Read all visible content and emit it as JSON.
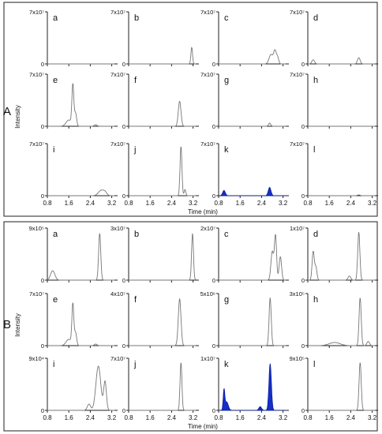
{
  "figure": {
    "panels": [
      {
        "id": "A",
        "label": "A",
        "ylabel": "Intensity",
        "xlabel": "Time (min)"
      },
      {
        "id": "B",
        "label": "B",
        "ylabel": "Intensity",
        "xlabel": "Time (min)"
      }
    ],
    "highlight_color": "#1530c8",
    "trace_color": "#777777"
  },
  "chart_data": [
    {
      "type": "line",
      "group": "A",
      "letter": "a",
      "ymax_label": "7x10⁷",
      "ylim": [
        0,
        1
      ],
      "xlim": [
        0.8,
        3.3
      ],
      "xticks": [
        "0.8",
        "1.6",
        "2.4",
        "3.2"
      ],
      "show_xticks": false,
      "highlight": false,
      "peaks": []
    },
    {
      "type": "line",
      "group": "A",
      "letter": "b",
      "ymax_label": "7x10⁷",
      "ylim": [
        0,
        1
      ],
      "xlim": [
        0.8,
        3.3
      ],
      "xticks": [
        "0.8",
        "1.6",
        "2.4",
        "3.2"
      ],
      "show_xticks": false,
      "highlight": false,
      "peaks": [
        [
          3.15,
          0.32,
          0.03
        ]
      ]
    },
    {
      "type": "line",
      "group": "A",
      "letter": "c",
      "ymax_label": "7x10⁷",
      "ylim": [
        0,
        1
      ],
      "xlim": [
        0.8,
        3.3
      ],
      "xticks": [
        "0.8",
        "1.6",
        "2.4",
        "3.2"
      ],
      "show_xticks": false,
      "highlight": false,
      "peaks": [
        [
          2.75,
          0.18,
          0.07
        ],
        [
          2.9,
          0.25,
          0.05
        ],
        [
          3.0,
          0.12,
          0.04
        ]
      ]
    },
    {
      "type": "line",
      "group": "A",
      "letter": "d",
      "ymax_label": "7x10⁷",
      "ylim": [
        0,
        1
      ],
      "xlim": [
        0.8,
        3.3
      ],
      "xticks": [
        "0.8",
        "1.6",
        "2.4",
        "3.2"
      ],
      "show_xticks": false,
      "highlight": false,
      "peaks": [
        [
          1.0,
          0.08,
          0.05
        ],
        [
          2.7,
          0.12,
          0.05
        ]
      ]
    },
    {
      "type": "line",
      "group": "A",
      "letter": "e",
      "ymax_label": "7x10⁷",
      "ylim": [
        0,
        1
      ],
      "xlim": [
        0.8,
        3.3
      ],
      "xticks": [
        "0.8",
        "1.6",
        "2.4",
        "3.2"
      ],
      "show_xticks": false,
      "highlight": false,
      "peaks": [
        [
          1.6,
          0.12,
          0.1
        ],
        [
          1.75,
          0.78,
          0.035
        ],
        [
          1.85,
          0.25,
          0.04
        ],
        [
          2.6,
          0.03,
          0.05
        ]
      ]
    },
    {
      "type": "line",
      "group": "A",
      "letter": "f",
      "ymax_label": "7x10⁷",
      "ylim": [
        0,
        1
      ],
      "xlim": [
        0.8,
        3.3
      ],
      "xticks": [
        "0.8",
        "1.6",
        "2.4",
        "3.2"
      ],
      "show_xticks": false,
      "highlight": false,
      "peaks": [
        [
          2.7,
          0.48,
          0.05
        ]
      ]
    },
    {
      "type": "line",
      "group": "A",
      "letter": "g",
      "ymax_label": "7x10⁷",
      "ylim": [
        0,
        1
      ],
      "xlim": [
        0.8,
        3.3
      ],
      "xticks": [
        "0.8",
        "1.6",
        "2.4",
        "3.2"
      ],
      "show_xticks": false,
      "highlight": false,
      "peaks": [
        [
          2.7,
          0.06,
          0.04
        ]
      ]
    },
    {
      "type": "line",
      "group": "A",
      "letter": "h",
      "ymax_label": "7x10⁷",
      "ylim": [
        0,
        1
      ],
      "xlim": [
        0.8,
        3.3
      ],
      "xticks": [
        "0.8",
        "1.6",
        "2.4",
        "3.2"
      ],
      "show_xticks": false,
      "highlight": false,
      "peaks": []
    },
    {
      "type": "line",
      "group": "A",
      "letter": "i",
      "ymax_label": "7x10⁷",
      "ylim": [
        0,
        1
      ],
      "xlim": [
        0.8,
        3.3
      ],
      "xticks": [
        "0.8",
        "1.6",
        "2.4",
        "3.2"
      ],
      "show_xticks": true,
      "highlight": false,
      "peaks": [
        [
          2.8,
          0.1,
          0.1
        ],
        [
          2.95,
          0.06,
          0.07
        ]
      ]
    },
    {
      "type": "line",
      "group": "A",
      "letter": "j",
      "ymax_label": "7x10⁷",
      "ylim": [
        0,
        1
      ],
      "xlim": [
        0.8,
        3.3
      ],
      "xticks": [
        "0.8",
        "1.6",
        "2.4",
        "3.2"
      ],
      "show_xticks": true,
      "highlight": false,
      "peaks": [
        [
          2.75,
          0.95,
          0.035
        ],
        [
          2.9,
          0.12,
          0.03
        ]
      ]
    },
    {
      "type": "area",
      "group": "A",
      "letter": "k",
      "ymax_label": "7x10⁷",
      "ylim": [
        0,
        1
      ],
      "xlim": [
        0.8,
        3.3
      ],
      "xticks": [
        "0.8",
        "1.6",
        "2.4",
        "3.2"
      ],
      "show_xticks": true,
      "highlight": true,
      "peaks": [
        [
          1.0,
          0.1,
          0.05
        ],
        [
          2.7,
          0.16,
          0.05
        ]
      ]
    },
    {
      "type": "line",
      "group": "A",
      "letter": "l",
      "ymax_label": "7x10⁷",
      "ylim": [
        0,
        1
      ],
      "xlim": [
        0.8,
        3.3
      ],
      "xticks": [
        "0.8",
        "1.6",
        "2.4",
        "3.2"
      ],
      "show_xticks": true,
      "highlight": false,
      "peaks": [
        [
          2.7,
          0.015,
          0.05
        ]
      ]
    },
    {
      "type": "line",
      "group": "B",
      "letter": "a",
      "ymax_label": "9x10⁵",
      "ylim": [
        0,
        1
      ],
      "xlim": [
        0.8,
        3.3
      ],
      "xticks": [
        "0.8",
        "1.6",
        "2.4",
        "3.2"
      ],
      "show_xticks": false,
      "highlight": false,
      "peaks": [
        [
          1.0,
          0.18,
          0.08
        ],
        [
          2.75,
          0.9,
          0.04
        ]
      ]
    },
    {
      "type": "line",
      "group": "B",
      "letter": "b",
      "ymax_label": "3x10⁷",
      "ylim": [
        0,
        1
      ],
      "xlim": [
        0.8,
        3.3
      ],
      "xticks": [
        "0.8",
        "1.6",
        "2.4",
        "3.2"
      ],
      "show_xticks": false,
      "highlight": false,
      "peaks": [
        [
          3.18,
          0.9,
          0.035
        ]
      ]
    },
    {
      "type": "line",
      "group": "B",
      "letter": "c",
      "ymax_label": "2x10⁷",
      "ylim": [
        0,
        1
      ],
      "xlim": [
        0.8,
        3.3
      ],
      "xticks": [
        "0.8",
        "1.6",
        "2.4",
        "3.2"
      ],
      "show_xticks": false,
      "highlight": false,
      "peaks": [
        [
          2.8,
          0.55,
          0.05
        ],
        [
          2.92,
          0.85,
          0.04
        ],
        [
          3.1,
          0.45,
          0.045
        ]
      ]
    },
    {
      "type": "line",
      "group": "B",
      "letter": "d",
      "ymax_label": "1x10⁷",
      "ylim": [
        0,
        1
      ],
      "xlim": [
        0.8,
        3.3
      ],
      "xticks": [
        "0.8",
        "1.6",
        "2.4",
        "3.2"
      ],
      "show_xticks": false,
      "highlight": false,
      "peaks": [
        [
          1.0,
          0.55,
          0.04
        ],
        [
          1.1,
          0.25,
          0.04
        ],
        [
          2.35,
          0.08,
          0.05
        ],
        [
          2.7,
          0.92,
          0.04
        ]
      ]
    },
    {
      "type": "line",
      "group": "B",
      "letter": "e",
      "ymax_label": "7x10⁷",
      "ylim": [
        0,
        1
      ],
      "xlim": [
        0.8,
        3.3
      ],
      "xticks": [
        "0.8",
        "1.6",
        "2.4",
        "3.2"
      ],
      "show_xticks": false,
      "highlight": false,
      "peaks": [
        [
          1.6,
          0.12,
          0.1
        ],
        [
          1.75,
          0.78,
          0.035
        ],
        [
          1.85,
          0.25,
          0.04
        ],
        [
          2.6,
          0.03,
          0.05
        ]
      ]
    },
    {
      "type": "line",
      "group": "B",
      "letter": "f",
      "ymax_label": "4x10⁷",
      "ylim": [
        0,
        1
      ],
      "xlim": [
        0.8,
        3.3
      ],
      "xticks": [
        "0.8",
        "1.6",
        "2.4",
        "3.2"
      ],
      "show_xticks": false,
      "highlight": false,
      "peaks": [
        [
          2.7,
          0.9,
          0.05
        ]
      ]
    },
    {
      "type": "line",
      "group": "B",
      "letter": "g",
      "ymax_label": "5x10⁶",
      "ylim": [
        0,
        1
      ],
      "xlim": [
        0.8,
        3.3
      ],
      "xticks": [
        "0.8",
        "1.6",
        "2.4",
        "3.2"
      ],
      "show_xticks": false,
      "highlight": false,
      "peaks": [
        [
          2.72,
          0.92,
          0.04
        ]
      ]
    },
    {
      "type": "line",
      "group": "B",
      "letter": "h",
      "ymax_label": "3x10⁵",
      "ylim": [
        0,
        1
      ],
      "xlim": [
        0.8,
        3.3
      ],
      "xticks": [
        "0.8",
        "1.6",
        "2.4",
        "3.2"
      ],
      "show_xticks": false,
      "highlight": false,
      "peaks": [
        [
          1.8,
          0.06,
          0.2
        ],
        [
          2.75,
          0.92,
          0.04
        ],
        [
          3.05,
          0.08,
          0.05
        ]
      ]
    },
    {
      "type": "line",
      "group": "B",
      "letter": "i",
      "ymax_label": "9x10⁴",
      "ylim": [
        0,
        1
      ],
      "xlim": [
        0.8,
        3.3
      ],
      "xticks": [
        "0.8",
        "1.6",
        "2.4",
        "3.2"
      ],
      "show_xticks": true,
      "highlight": false,
      "peaks": [
        [
          2.35,
          0.12,
          0.06
        ],
        [
          2.7,
          0.85,
          0.09
        ],
        [
          2.95,
          0.55,
          0.05
        ]
      ]
    },
    {
      "type": "line",
      "group": "B",
      "letter": "j",
      "ymax_label": "7x10⁷",
      "ylim": [
        0,
        1
      ],
      "xlim": [
        0.8,
        3.3
      ],
      "xticks": [
        "0.8",
        "1.6",
        "2.4",
        "3.2"
      ],
      "show_xticks": true,
      "highlight": false,
      "peaks": [
        [
          2.75,
          0.92,
          0.035
        ]
      ]
    },
    {
      "type": "area",
      "group": "B",
      "letter": "k",
      "ymax_label": "1x10⁷",
      "ylim": [
        0,
        1
      ],
      "xlim": [
        0.8,
        3.3
      ],
      "xticks": [
        "0.8",
        "1.6",
        "2.4",
        "3.2"
      ],
      "show_xticks": true,
      "highlight": true,
      "peaks": [
        [
          1.0,
          0.38,
          0.03
        ],
        [
          1.1,
          0.16,
          0.06
        ],
        [
          2.35,
          0.07,
          0.05
        ],
        [
          2.72,
          0.9,
          0.045
        ]
      ]
    },
    {
      "type": "line",
      "group": "B",
      "letter": "l",
      "ymax_label": "9x10⁵",
      "ylim": [
        0,
        1
      ],
      "xlim": [
        0.8,
        3.3
      ],
      "xticks": [
        "0.8",
        "1.6",
        "2.4",
        "3.2"
      ],
      "show_xticks": true,
      "highlight": false,
      "peaks": [
        [
          2.75,
          0.92,
          0.04
        ]
      ]
    }
  ]
}
